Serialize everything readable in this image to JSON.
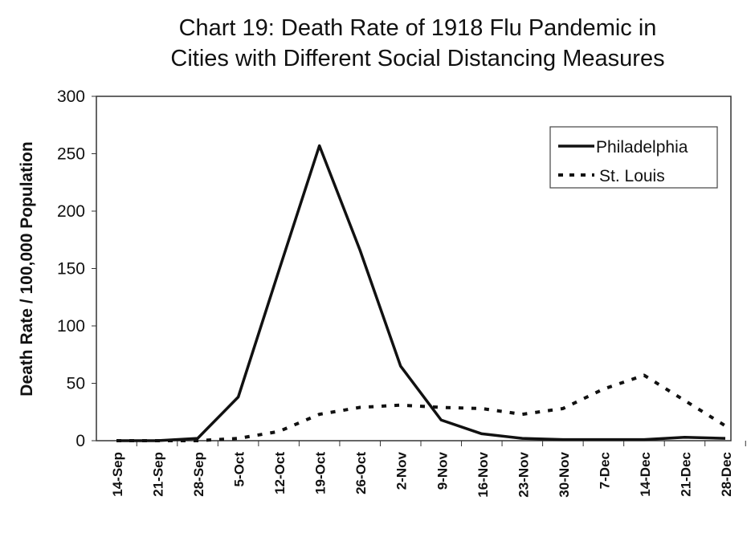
{
  "chart_data": {
    "type": "line",
    "title_line1": "Chart 19: Death Rate of 1918 Flu Pandemic in",
    "title_line2": "Cities with Different Social Distancing Measures",
    "xlabel": "",
    "ylabel": "Death Rate / 100,000 Population",
    "ylim": [
      0,
      300
    ],
    "yticks": [
      "0",
      "50",
      "100",
      "150",
      "200",
      "250",
      "300"
    ],
    "categories": [
      "14-Sep",
      "21-Sep",
      "28-Sep",
      "5-Oct",
      "12-Oct",
      "19-Oct",
      "26-Oct",
      "2-Nov",
      "9-Nov",
      "16-Nov",
      "23-Nov",
      "30-Nov",
      "7-Dec",
      "14-Dec",
      "21-Dec",
      "28-Dec"
    ],
    "series": [
      {
        "name": "Philadelphia",
        "style": "solid",
        "values": [
          0,
          0,
          2,
          38,
          148,
          257,
          166,
          65,
          18,
          6,
          2,
          1,
          1,
          1,
          3,
          2
        ]
      },
      {
        "name": "St. Louis",
        "style": "dotted",
        "values": [
          0,
          0,
          0,
          2,
          8,
          23,
          29,
          31,
          29,
          28,
          23,
          28,
          45,
          57,
          35,
          13
        ]
      }
    ],
    "grid": false,
    "legend_position": "top-right",
    "color": "#111111"
  }
}
